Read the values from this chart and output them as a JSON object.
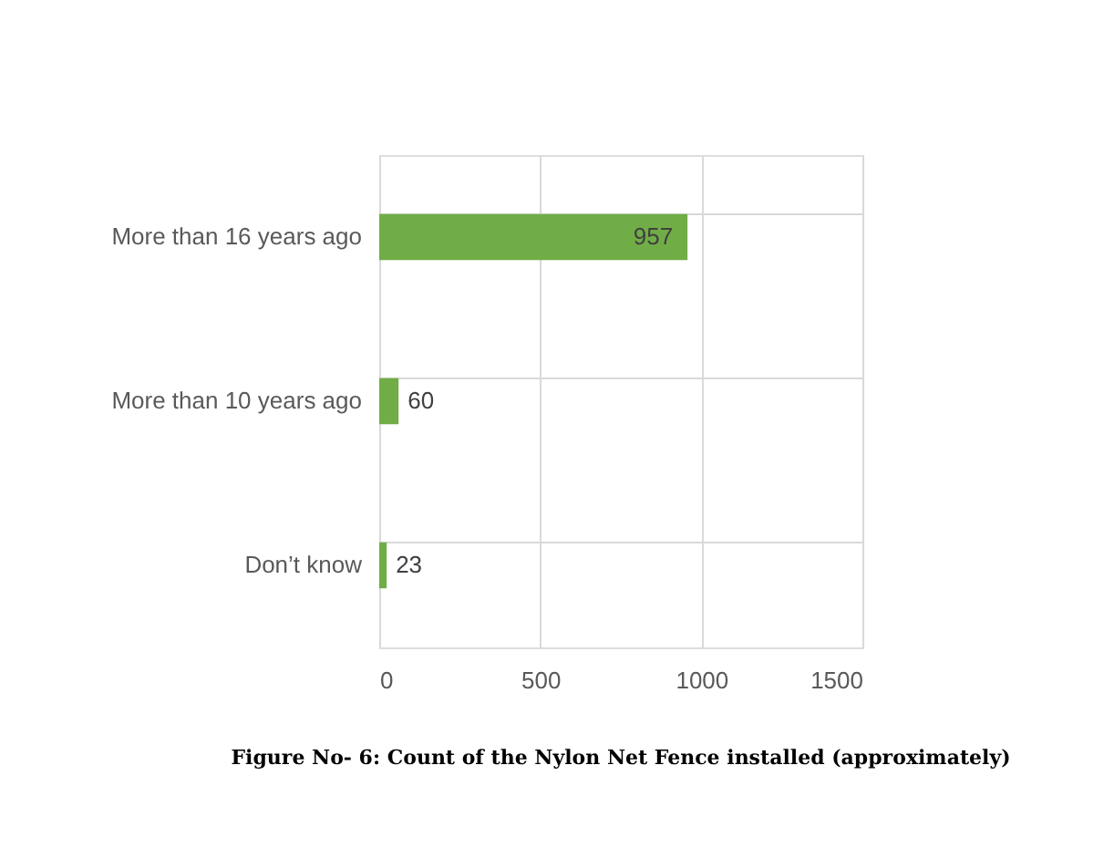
{
  "chart_data": {
    "type": "bar",
    "orientation": "horizontal",
    "categories": [
      "More than 16 years ago",
      "More than 10 years ago",
      "Don’t know"
    ],
    "values": [
      957,
      60,
      23
    ],
    "color": "#70ad47",
    "xlim": [
      0,
      1500
    ],
    "xticks": [
      0,
      500,
      1000,
      1500
    ],
    "grid": true,
    "data_labels": true,
    "annotations": [
      "Figure No- 6: Count of the Nylon Net Fence installed (approximately)"
    ]
  }
}
